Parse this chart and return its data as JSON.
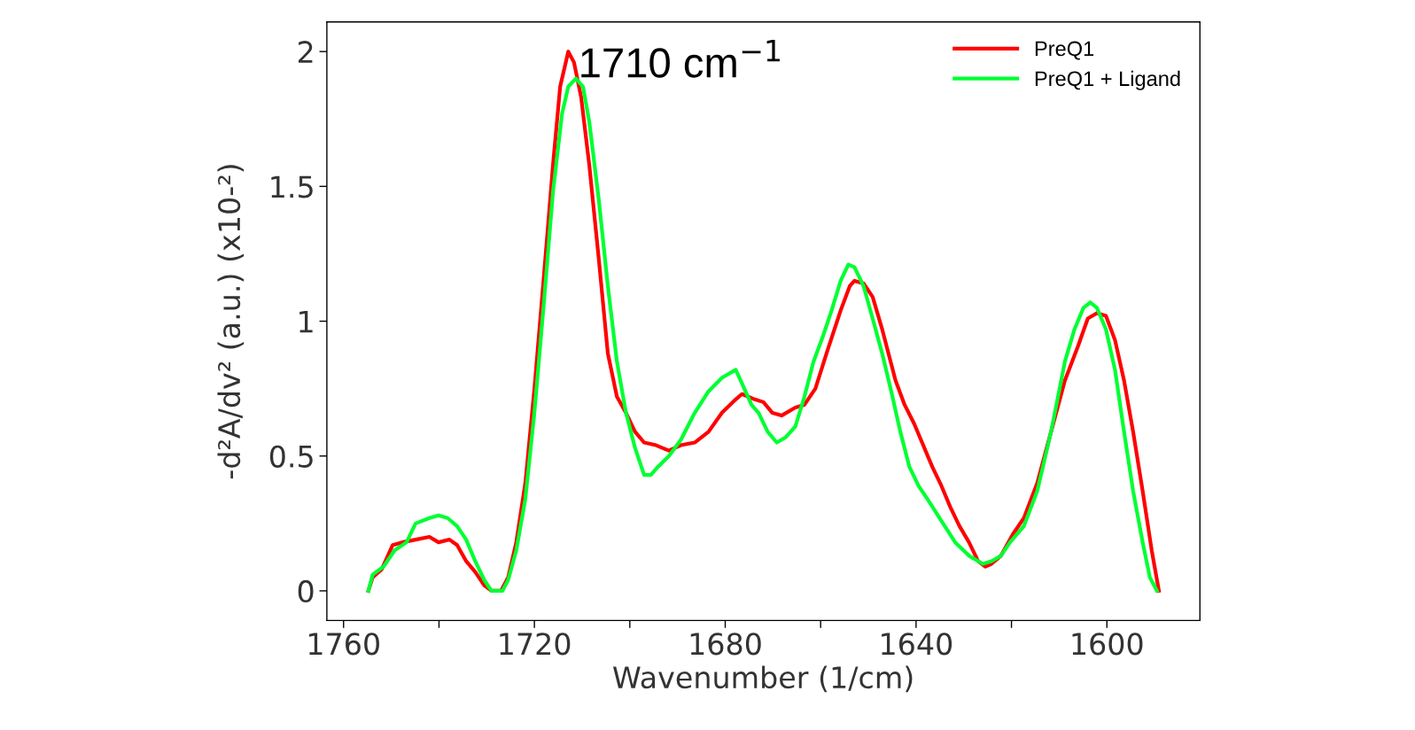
{
  "chart_data": {
    "type": "line",
    "xlabel": "Wavenumber (1/cm)",
    "ylabel": "-d²A/dv² (a.u.) (x10-²)",
    "annotations": [
      "1710 cm$^{−1}$"
    ],
    "xlim": [
      1763.5,
      1580.5
    ],
    "ylim": [
      -0.11,
      2.11
    ],
    "xticks": [
      1760,
      {
        "value": 1740,
        "label": null
      },
      1720,
      {
        "value": 1700,
        "label": null
      },
      1680,
      {
        "value": 1660,
        "label": null
      },
      1640,
      {
        "value": 1620,
        "label": null
      },
      1600
    ],
    "yticks": [
      0,
      0.5,
      1,
      1.5,
      2
    ],
    "grid": false,
    "legend": "top right",
    "marker": "none",
    "line_style": "solid",
    "series": [
      {
        "name": "PreQ1",
        "color": "#ff0000",
        "x": [
          1754.8,
          1753.9,
          1752,
          1749.7,
          1747.7,
          1744.9,
          1742,
          1740.1,
          1737.8,
          1736.2,
          1734.3,
          1732.4,
          1730.5,
          1729,
          1727,
          1725.5,
          1723.8,
          1721.9,
          1720,
          1718,
          1716.1,
          1714.6,
          1712.9,
          1711.7,
          1710.2,
          1708.5,
          1706.5,
          1704.6,
          1702.7,
          1700.8,
          1698.9,
          1697,
          1694.5,
          1691.8,
          1689.3,
          1686.4,
          1683.5,
          1680.7,
          1677.8,
          1676.5,
          1673.8,
          1672,
          1670.1,
          1668.2,
          1665.3,
          1663.4,
          1661.1,
          1658.6,
          1655.8,
          1653.9,
          1652.9,
          1651,
          1649.1,
          1647.1,
          1644.3,
          1642.4,
          1640.4,
          1638.5,
          1636.6,
          1634.7,
          1632.8,
          1630.9,
          1628.9,
          1627,
          1625.5,
          1624.2,
          1622.2,
          1619.7,
          1617.4,
          1614.6,
          1611.7,
          1608.8,
          1606,
          1604,
          1602.1,
          1600.2,
          1598.3,
          1596.4,
          1594.5,
          1592.5,
          1590.6,
          1589.1
        ],
        "values": [
          0,
          0.05,
          0.08,
          0.17,
          0.18,
          0.19,
          0.2,
          0.18,
          0.19,
          0.17,
          0.11,
          0.07,
          0.02,
          0,
          0,
          0.05,
          0.18,
          0.4,
          0.75,
          1.17,
          1.58,
          1.87,
          2.0,
          1.96,
          1.83,
          1.58,
          1.23,
          0.88,
          0.72,
          0.66,
          0.59,
          0.55,
          0.54,
          0.52,
          0.54,
          0.55,
          0.59,
          0.66,
          0.71,
          0.73,
          0.71,
          0.7,
          0.66,
          0.65,
          0.68,
          0.69,
          0.75,
          0.89,
          1.04,
          1.13,
          1.15,
          1.14,
          1.09,
          0.97,
          0.78,
          0.69,
          0.62,
          0.54,
          0.46,
          0.39,
          0.31,
          0.24,
          0.18,
          0.11,
          0.09,
          0.1,
          0.13,
          0.21,
          0.27,
          0.4,
          0.59,
          0.78,
          0.91,
          1.01,
          1.03,
          1.02,
          0.93,
          0.78,
          0.59,
          0.37,
          0.15,
          0
        ]
      },
      {
        "name": "PreQ1 + Ligand",
        "color": "#00ff33",
        "x": [
          1754.8,
          1753.9,
          1751.6,
          1749.3,
          1746.8,
          1744.9,
          1742,
          1740.1,
          1738.2,
          1736.2,
          1734.3,
          1732.4,
          1730.5,
          1729,
          1726.7,
          1725.5,
          1723.8,
          1721.9,
          1720,
          1718,
          1716.1,
          1714.2,
          1712.9,
          1711.3,
          1709.8,
          1708.5,
          1706.5,
          1704.6,
          1702.7,
          1700.8,
          1698.9,
          1697,
          1695.6,
          1694.1,
          1691.8,
          1689.3,
          1686.4,
          1683.5,
          1680.7,
          1677.8,
          1676.5,
          1674.5,
          1673,
          1671.1,
          1669.2,
          1667.3,
          1665.3,
          1663.4,
          1661.5,
          1659.6,
          1657.7,
          1655.8,
          1654.2,
          1652.9,
          1651,
          1649.1,
          1647.1,
          1645.2,
          1643.3,
          1641.4,
          1639.5,
          1637.6,
          1634.7,
          1631.8,
          1628.9,
          1626,
          1624.2,
          1622.2,
          1620.3,
          1617.4,
          1614.6,
          1611.7,
          1608.8,
          1606.8,
          1604.9,
          1603.5,
          1602.1,
          1600.2,
          1598.3,
          1596.4,
          1594.5,
          1592.5,
          1591,
          1589.5
        ],
        "values": [
          0,
          0.06,
          0.09,
          0.15,
          0.18,
          0.25,
          0.27,
          0.28,
          0.27,
          0.24,
          0.19,
          0.11,
          0.04,
          0,
          0,
          0.04,
          0.15,
          0.34,
          0.66,
          1.07,
          1.48,
          1.77,
          1.87,
          1.9,
          1.87,
          1.74,
          1.45,
          1.13,
          0.85,
          0.66,
          0.53,
          0.43,
          0.43,
          0.46,
          0.5,
          0.56,
          0.66,
          0.74,
          0.79,
          0.82,
          0.77,
          0.69,
          0.66,
          0.59,
          0.55,
          0.57,
          0.61,
          0.72,
          0.85,
          0.94,
          1.04,
          1.15,
          1.21,
          1.2,
          1.13,
          1.01,
          0.88,
          0.74,
          0.59,
          0.46,
          0.39,
          0.34,
          0.26,
          0.18,
          0.13,
          0.1,
          0.11,
          0.13,
          0.18,
          0.24,
          0.37,
          0.59,
          0.85,
          0.97,
          1.05,
          1.07,
          1.05,
          0.97,
          0.82,
          0.59,
          0.37,
          0.18,
          0.05,
          0
        ]
      }
    ]
  }
}
